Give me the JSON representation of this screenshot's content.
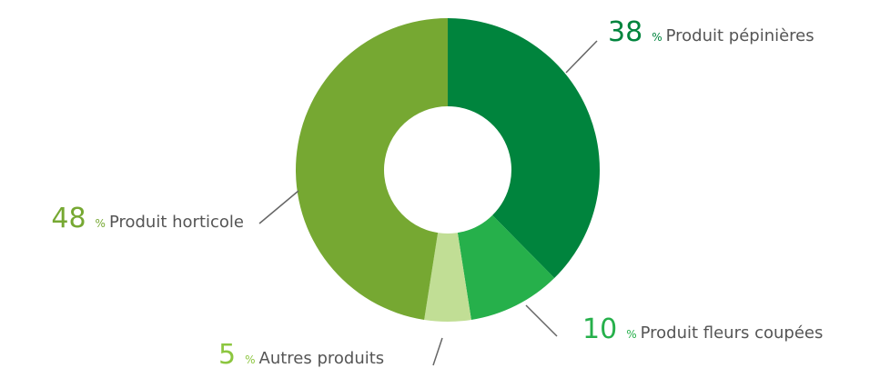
{
  "chart_data": {
    "type": "donut",
    "unit": "%",
    "categories": [
      "Produit pépinières",
      "Produit fleurs coupées",
      "Autres produits",
      "Produit horticole"
    ],
    "values": [
      38,
      10,
      5,
      48
    ],
    "colors": [
      "#00843d",
      "#26b04b",
      "#c1de95",
      "#76a832"
    ],
    "label_colors": [
      "#00843d",
      "#26b04b",
      "#8cc63f",
      "#76a832"
    ]
  }
}
